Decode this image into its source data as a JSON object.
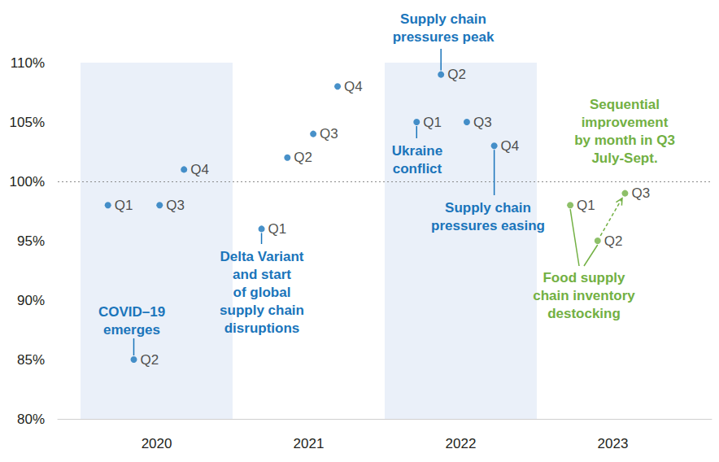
{
  "chart_data": {
    "type": "scatter",
    "x": [
      2020.18,
      2020.35,
      2020.52,
      2020.68,
      2021.19,
      2021.36,
      2021.53,
      2021.69,
      2022.21,
      2022.37,
      2022.54,
      2022.72,
      2023.22,
      2023.4,
      2023.58
    ],
    "values": [
      98,
      85,
      98,
      101,
      96,
      102,
      104,
      108,
      105,
      109,
      105,
      103,
      98,
      95,
      99
    ],
    "point_labels": [
      "Q1",
      "Q2",
      "Q3",
      "Q4",
      "Q1",
      "Q2",
      "Q3",
      "Q4",
      "Q1",
      "Q2",
      "Q3",
      "Q4",
      "Q1",
      "Q2",
      "Q3"
    ],
    "colors": [
      "#1a75bb",
      "#1a75bb",
      "#1a75bb",
      "#1a75bb",
      "#1a75bb",
      "#1a75bb",
      "#1a75bb",
      "#1a75bb",
      "#1a75bb",
      "#1a75bb",
      "#1a75bb",
      "#1a75bb",
      "#72b043",
      "#72b043",
      "#72b043"
    ],
    "xlim": [
      2019.85,
      2024.15
    ],
    "xticks": [
      {
        "value": 2020.5,
        "label": "2020"
      },
      {
        "value": 2021.5,
        "label": "2021"
      },
      {
        "value": 2022.5,
        "label": "2022"
      },
      {
        "value": 2023.5,
        "label": "2023"
      }
    ],
    "ylim": [
      80,
      110
    ],
    "yticks": [
      {
        "value": 80,
        "label": "80%"
      },
      {
        "value": 85,
        "label": "85%"
      },
      {
        "value": 90,
        "label": "90%"
      },
      {
        "value": 95,
        "label": "95%"
      },
      {
        "value": 100,
        "label": "100%"
      },
      {
        "value": 105,
        "label": "105%"
      },
      {
        "value": 110,
        "label": "110%"
      }
    ],
    "reference_line": 100,
    "grid": false,
    "annotations": [
      {
        "text": "COVID–19\nemerges",
        "color": "#1a75bb"
      },
      {
        "text": "Delta Variant\nand start\nof global\nsupply chain\ndisruptions",
        "color": "#1a75bb"
      },
      {
        "text": "Ukraine\nconflict",
        "color": "#1a75bb"
      },
      {
        "text": "Supply chain\npressures peak",
        "color": "#1a75bb"
      },
      {
        "text": "Supply chain\npressures easing",
        "color": "#1a75bb"
      },
      {
        "text": "Food supply\nchain inventory\ndestocking",
        "color": "#72b043"
      },
      {
        "text": "Sequential\nimprovement\nby month in Q3\nJuly-Sept.",
        "color": "#72b043"
      }
    ]
  }
}
